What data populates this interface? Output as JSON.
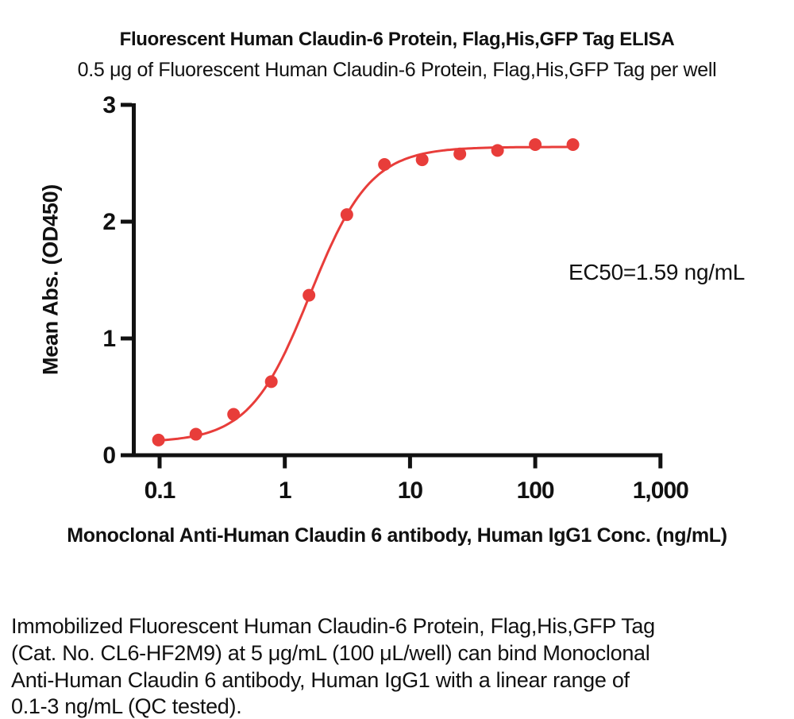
{
  "page": {
    "title": "Fluorescent Human Claudin-6 Protein, Flag,His,GFP Tag ELISA",
    "subtitle": "0.5 μg of Fluorescent Human Claudin-6 Protein, Flag,His,GFP Tag per well"
  },
  "chart_data": {
    "type": "scatter",
    "x_scale": "log",
    "x": [
      0.098,
      0.195,
      0.39,
      0.78,
      1.56,
      3.13,
      6.25,
      12.5,
      25,
      50,
      100,
      200
    ],
    "y": [
      0.13,
      0.18,
      0.35,
      0.63,
      1.37,
      2.06,
      2.49,
      2.53,
      2.58,
      2.61,
      2.66,
      2.66
    ],
    "curve_fit": {
      "model": "4PL",
      "bottom": 0.11,
      "top": 2.64,
      "ec50": 1.59,
      "hill": 1.8,
      "x_start": 0.09,
      "x_end": 200
    },
    "xlabel": "Monoclonal Anti-Human Claudin 6 antibody, Human IgG1 Conc. (ng/mL)",
    "ylabel": "Mean Abs. (OD450)",
    "x_ticks": [
      0.1,
      1,
      10,
      100,
      1000
    ],
    "x_tick_labels": [
      "0.1",
      "1",
      "10",
      "100",
      "1,000"
    ],
    "y_ticks": [
      0,
      1,
      2,
      3
    ],
    "y_tick_labels": [
      "0",
      "1",
      "2",
      "3"
    ],
    "xlim": [
      0.062,
      1000
    ],
    "ylim": [
      0,
      3
    ],
    "grid": false,
    "legend": "none",
    "annotation": "EC50=1.59 ng/mL",
    "point_color": "#e83d3a",
    "curve_color": "#e83d3a",
    "axis_color": "#111111"
  },
  "footer": {
    "lines": [
      "Immobilized Fluorescent Human Claudin-6 Protein, Flag,His,GFP Tag",
      "(Cat. No. CL6-HF2M9) at 5 μg/mL (100 μL/well) can bind Monoclonal",
      "Anti-Human Claudin 6 antibody, Human IgG1 with a linear range of",
      "0.1-3 ng/mL (QC tested)."
    ]
  }
}
